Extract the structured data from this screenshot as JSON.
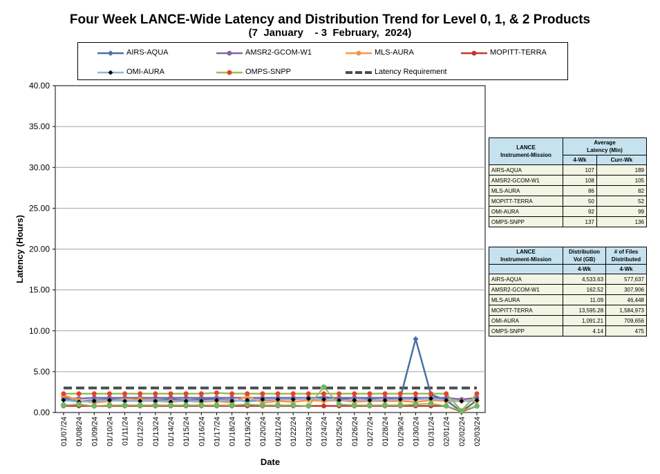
{
  "chart_data": {
    "type": "line",
    "title": "Four Week LANCE-Wide Latency and Distribution Trend for Level 0, 1, & 2 Products",
    "subtitle": "(7  January    - 3  February,  2024)",
    "xlabel": "Date",
    "ylabel": "Latency (Hours)",
    "ylim": [
      0,
      40
    ],
    "yticks": [
      "0.00",
      "5.00",
      "10.00",
      "15.00",
      "20.00",
      "25.00",
      "30.00",
      "35.00",
      "40.00"
    ],
    "grid": true,
    "legend_position": "top",
    "categories": [
      "01/07/24",
      "01/08/24",
      "01/09/24",
      "01/10/24",
      "01/11/24",
      "01/12/24",
      "01/13/24",
      "01/14/24",
      "01/15/24",
      "01/16/24",
      "01/17/24",
      "01/18/24",
      "01/19/24",
      "01/20/24",
      "01/21/24",
      "01/22/24",
      "01/23/24",
      "01/24/24",
      "01/25/24",
      "01/26/24",
      "01/27/24",
      "01/28/24",
      "01/29/24",
      "01/30/24",
      "01/31/24",
      "02/01/24",
      "02/02/24",
      "02/03/24"
    ],
    "series": [
      {
        "name": "AIRS-AQUA",
        "color": "#4a6fa5",
        "marker": "diamond",
        "values": [
          1.6,
          1.4,
          1.5,
          1.6,
          1.5,
          1.6,
          1.5,
          1.6,
          1.5,
          1.6,
          1.6,
          1.5,
          1.4,
          1.5,
          1.6,
          1.6,
          1.7,
          1.9,
          1.7,
          1.5,
          1.6,
          1.5,
          1.8,
          9.0,
          2.2,
          1.5,
          0.1,
          1.5
        ]
      },
      {
        "name": "AMSR2-GCOM-W1",
        "color": "#8064a2",
        "marker": "circle",
        "values": [
          1.8,
          1.7,
          1.8,
          1.8,
          1.8,
          1.8,
          1.8,
          1.8,
          1.8,
          1.8,
          1.8,
          1.8,
          1.8,
          1.8,
          1.8,
          1.8,
          1.8,
          1.8,
          1.8,
          1.8,
          1.8,
          1.8,
          1.8,
          1.8,
          1.8,
          1.8,
          1.6,
          1.8
        ]
      },
      {
        "name": "MLS-AURA",
        "color": "#f79646",
        "marker": "circle",
        "values": [
          2.1,
          1.5,
          1.2,
          1.4,
          1.5,
          1.6,
          1.4,
          1.4,
          1.4,
          1.3,
          1.4,
          1.2,
          2.0,
          1.2,
          1.4,
          1.3,
          1.5,
          1.4,
          1.5,
          1.3,
          1.4,
          1.4,
          1.4,
          1.3,
          1.5,
          1.4,
          1.4,
          1.4
        ]
      },
      {
        "name": "MOPITT-TERRA",
        "color": "#c0392b",
        "marker": "circle",
        "values": [
          0.8,
          0.8,
          0.8,
          0.8,
          0.8,
          0.8,
          0.8,
          0.8,
          0.8,
          0.8,
          0.8,
          0.8,
          0.8,
          0.8,
          0.8,
          0.8,
          0.8,
          0.8,
          0.8,
          0.8,
          0.8,
          0.8,
          0.8,
          0.8,
          0.8,
          0.8,
          0.1,
          0.8
        ]
      },
      {
        "name": "OMI-AURA",
        "color": "#95b3d7",
        "marker": "small-diamond",
        "values": [
          1.5,
          1.3,
          1.4,
          1.5,
          1.4,
          1.4,
          1.4,
          1.3,
          1.4,
          1.4,
          1.5,
          1.4,
          1.5,
          1.6,
          1.6,
          1.6,
          1.7,
          1.6,
          1.5,
          1.5,
          1.5,
          1.5,
          1.6,
          1.6,
          1.7,
          1.5,
          1.4,
          1.5
        ]
      },
      {
        "name": "OMPS-SNPP",
        "color": "#9bbb59",
        "marker": "red-circle",
        "values": [
          2.3,
          2.3,
          2.3,
          2.3,
          2.3,
          2.3,
          2.3,
          2.3,
          2.3,
          2.3,
          2.4,
          2.3,
          2.3,
          2.3,
          2.3,
          2.3,
          2.3,
          2.3,
          2.3,
          2.3,
          2.3,
          2.3,
          2.3,
          2.3,
          2.3,
          2.3,
          0.2,
          2.3
        ]
      },
      {
        "name": "MOPITT-TERRA-green",
        "legend": false,
        "color": "#9bbb59",
        "marker": "green-circle",
        "values": [
          0.9,
          1.0,
          0.8,
          0.9,
          0.9,
          0.9,
          0.9,
          0.9,
          0.9,
          0.9,
          0.9,
          0.9,
          1.0,
          0.9,
          0.9,
          0.9,
          0.8,
          3.1,
          1.0,
          0.9,
          0.9,
          0.9,
          0.9,
          1.0,
          1.1,
          0.8,
          0.2,
          0.8
        ]
      },
      {
        "name": "Latency Requirement",
        "color": "#444c56",
        "marker": "none",
        "dashed": true,
        "values": [
          3,
          3,
          3,
          3,
          3,
          3,
          3,
          3,
          3,
          3,
          3,
          3,
          3,
          3,
          3,
          3,
          3,
          3,
          3,
          3,
          3,
          3,
          3,
          3,
          3,
          3,
          3,
          3
        ]
      }
    ],
    "legend": [
      "AIRS-AQUA",
      "AMSR2-GCOM-W1",
      "MLS-AURA",
      "MOPITT-TERRA",
      "OMI-AURA",
      "OMPS-SNPP",
      "Latency Requirement"
    ]
  },
  "latency_table": {
    "header_col1": "LANCE\nInstrument-Mission",
    "header_col2": "Average\nLatency (Min)",
    "sub1": "4-Wk",
    "sub2": "Curr-Wk",
    "rows": [
      {
        "name": "AIRS-AQUA",
        "a": "107",
        "b": "189"
      },
      {
        "name": "AMSR2-GCOM-W1",
        "a": "108",
        "b": "105"
      },
      {
        "name": "MLS-AURA",
        "a": "86",
        "b": "82"
      },
      {
        "name": "MOPITT-TERRA",
        "a": "50",
        "b": "52"
      },
      {
        "name": "OMI-AURA",
        "a": "92",
        "b": "99"
      },
      {
        "name": "OMPS-SNPP",
        "a": "137",
        "b": "136"
      }
    ]
  },
  "distribution_table": {
    "header_col1": "LANCE\nInstrument-Mission",
    "header_col2": "Distribution\nVol (GB)",
    "header_col3": "# of Files\nDistributed",
    "sub2": "4-Wk",
    "sub3": "4-Wk",
    "rows": [
      {
        "name": "AIRS-AQUA",
        "a": "4,533.63",
        "b": "577,637"
      },
      {
        "name": "AMSR2-GCOM-W1",
        "a": "162.52",
        "b": "307,906"
      },
      {
        "name": "MLS-AURA",
        "a": "11.09",
        "b": "46,448"
      },
      {
        "name": "MOPITT-TERRA",
        "a": "13,595.28",
        "b": "1,584,973"
      },
      {
        "name": "OMI-AURA",
        "a": "1,091.21",
        "b": "709,656"
      },
      {
        "name": "OMPS-SNPP",
        "a": "4.14",
        "b": "475"
      }
    ]
  }
}
